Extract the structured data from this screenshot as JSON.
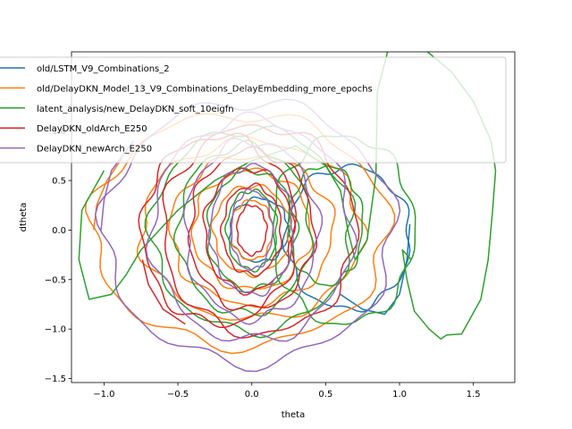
{
  "chart_data": {
    "type": "line",
    "title": "",
    "xlabel": "theta",
    "ylabel": "dtheta",
    "xlim": [
      -1.22,
      1.78
    ],
    "ylim": [
      -1.54,
      1.8
    ],
    "xticks": [
      -1.0,
      -0.5,
      0.0,
      0.5,
      1.0,
      1.5
    ],
    "xtick_labels": [
      "−1.0",
      "−0.5",
      "0.0",
      "0.5",
      "1.0",
      "1.5"
    ],
    "yticks": [
      -1.5,
      -1.0,
      -0.5,
      0.0,
      0.5,
      1.0
    ],
    "ytick_labels": [
      "−1.5",
      "−1.0",
      "−0.5",
      "0.0",
      "0.5",
      "1.0"
    ],
    "grid": false,
    "legend_position": "upper-left",
    "series": [
      {
        "name": "old/LSTM_V9_Combinations_2",
        "color": "#1f77b4",
        "orbits": [
          {
            "cx": 0.65,
            "cy": -0.08,
            "ax": 0.42,
            "ay": 0.72,
            "ph": 0.0
          },
          {
            "cx": 0.05,
            "cy": 0.0,
            "ax": 0.2,
            "ay": 0.32,
            "ph": 1.0
          }
        ],
        "points": [
          [
            1.07,
            0.06
          ],
          [
            1.05,
            -0.3
          ],
          [
            1.0,
            -0.65
          ],
          [
            0.9,
            -0.85
          ],
          [
            0.75,
            -0.8
          ],
          [
            0.6,
            -0.65
          ]
        ]
      },
      {
        "name": "old/DelayDKN_Model_13_V9_Combinations_DelayEmbedding_more_epochs",
        "color": "#ff7f0e",
        "orbits": [
          {
            "cx": -0.08,
            "cy": 0.0,
            "ax": 1.0,
            "ay": 1.17,
            "ph": 0.4
          },
          {
            "cx": 0.0,
            "cy": 0.0,
            "ax": 0.75,
            "ay": 0.9,
            "ph": 1.1
          },
          {
            "cx": 0.0,
            "cy": 0.0,
            "ax": 0.55,
            "ay": 0.75,
            "ph": 2.0
          },
          {
            "cx": 0.0,
            "cy": 0.0,
            "ax": 0.4,
            "ay": 0.6,
            "ph": 2.7
          },
          {
            "cx": 0.0,
            "cy": 0.0,
            "ax": 0.26,
            "ay": 0.45,
            "ph": 3.4
          },
          {
            "cx": 0.0,
            "cy": 0.0,
            "ax": 0.14,
            "ay": 0.3,
            "ph": 4.0
          }
        ],
        "points": [
          [
            -1.07,
            0.0
          ],
          [
            -1.05,
            0.25
          ],
          [
            -0.98,
            0.5
          ],
          [
            -0.88,
            0.72
          ]
        ]
      },
      {
        "name": "latent_analysis/new_DelayDKN_soft_10eigfn",
        "color": "#2ca02c",
        "orbits": [
          {
            "cx": 0.0,
            "cy": 0.0,
            "ax": 0.68,
            "ay": 1.02,
            "ph": 0.2
          },
          {
            "cx": -0.05,
            "cy": 0.0,
            "ax": 0.45,
            "ay": 0.85,
            "ph": 1.3
          },
          {
            "cx": 0.0,
            "cy": 0.0,
            "ax": 0.3,
            "ay": 0.6,
            "ph": 2.3
          },
          {
            "cx": 0.0,
            "cy": 0.0,
            "ax": 0.17,
            "ay": 0.4,
            "ph": 3.3
          },
          {
            "cx": 0.62,
            "cy": 0.0,
            "ax": 0.48,
            "ay": 0.95,
            "ph": 0.8
          },
          {
            "cx": 0.5,
            "cy": 0.05,
            "ax": 0.25,
            "ay": 0.6,
            "ph": 1.9
          }
        ],
        "points": [
          [
            -1.0,
            0.6
          ],
          [
            -1.15,
            0.2
          ],
          [
            -1.17,
            -0.3
          ],
          [
            -1.1,
            -0.7
          ],
          [
            -0.95,
            -0.65
          ],
          [
            -0.85,
            -0.45
          ],
          [
            -0.75,
            -0.2
          ],
          [
            -0.5,
            0.2
          ],
          [
            -0.25,
            0.5
          ],
          [
            0.0,
            0.7
          ],
          [
            0.3,
            0.85
          ],
          [
            0.5,
            0.65
          ],
          [
            0.6,
            0.4
          ],
          [
            0.65,
            0.0
          ],
          [
            0.7,
            -0.3
          ],
          [
            0.78,
            -0.1
          ],
          [
            0.84,
            0.55
          ],
          [
            0.85,
            1.4
          ],
          [
            0.95,
            1.98
          ],
          [
            1.15,
            1.85
          ],
          [
            1.35,
            1.6
          ],
          [
            1.5,
            1.3
          ],
          [
            1.62,
            0.9
          ],
          [
            1.65,
            0.6
          ],
          [
            1.63,
            0.2
          ],
          [
            1.6,
            -0.3
          ],
          [
            1.55,
            -0.7
          ],
          [
            1.42,
            -1.05
          ],
          [
            1.32,
            -1.06
          ],
          [
            1.28,
            -1.1
          ],
          [
            1.2,
            -1.0
          ],
          [
            1.1,
            -0.82
          ],
          [
            1.05,
            -0.5
          ],
          [
            1.02,
            -0.2
          ],
          [
            1.08,
            -0.3
          ]
        ]
      },
      {
        "name": "DelayDKN_oldArch_E250",
        "color": "#d62728",
        "orbits": [
          {
            "cx": 0.05,
            "cy": 0.0,
            "ax": 0.65,
            "ay": 1.05,
            "ph": 0.6
          },
          {
            "cx": -0.22,
            "cy": 0.0,
            "ax": 0.52,
            "ay": 0.95,
            "ph": 1.6
          },
          {
            "cx": 0.0,
            "cy": 0.0,
            "ax": 0.42,
            "ay": 0.8,
            "ph": 2.6
          },
          {
            "cx": -0.02,
            "cy": 0.0,
            "ax": 0.3,
            "ay": 0.62,
            "ph": 3.6
          },
          {
            "cx": 0.0,
            "cy": 0.0,
            "ax": 0.2,
            "ay": 0.45,
            "ph": 4.6
          },
          {
            "cx": 0.0,
            "cy": 0.0,
            "ax": 0.1,
            "ay": 0.25,
            "ph": 5.3
          }
        ],
        "points": [
          [
            -0.74,
            -0.3
          ],
          [
            -0.7,
            -0.55
          ],
          [
            -0.6,
            -0.8
          ],
          [
            -0.45,
            -0.95
          ]
        ]
      },
      {
        "name": "DelayDKN_newArch_E250",
        "color": "#9467bd",
        "orbits": [
          {
            "cx": -0.02,
            "cy": -0.02,
            "ax": 0.98,
            "ay": 1.32,
            "ph": 0.3
          },
          {
            "cx": 0.0,
            "cy": 0.0,
            "ax": 0.68,
            "ay": 1.12,
            "ph": 1.2
          },
          {
            "cx": 0.0,
            "cy": 0.0,
            "ax": 0.45,
            "ay": 0.9,
            "ph": 2.2
          },
          {
            "cx": 0.0,
            "cy": 0.0,
            "ax": 0.28,
            "ay": 0.65,
            "ph": 3.1
          },
          {
            "cx": 0.0,
            "cy": 0.0,
            "ax": 0.14,
            "ay": 0.4,
            "ph": 4.1
          }
        ],
        "points": [
          [
            -1.02,
            0.0
          ],
          [
            -1.0,
            0.3
          ],
          [
            -0.95,
            0.6
          ],
          [
            -0.8,
            0.9
          ]
        ]
      }
    ]
  }
}
